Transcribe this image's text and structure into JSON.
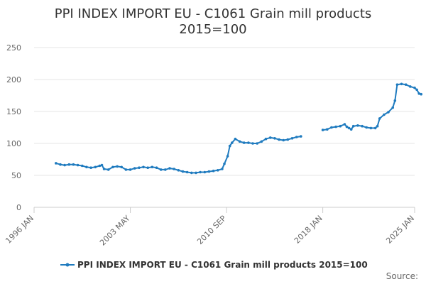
{
  "chart_data": {
    "type": "line",
    "title_line1": "PPI INDEX IMPORT EU - C1061 Grain mill products",
    "title_line2": "2015=100",
    "xlabel": "",
    "ylabel": "",
    "x_tick_labels": [
      "1996 JAN",
      "2003 MAY",
      "2010 SEP",
      "2018 JAN",
      "2025 JAN"
    ],
    "x_tick_dates": [
      "1996-01",
      "2003-05",
      "2010-09",
      "2018-01",
      "2025-01"
    ],
    "xlim": [
      "1996-01",
      "2025-01"
    ],
    "ylim": [
      0,
      250
    ],
    "y_ticks": [
      0,
      50,
      100,
      150,
      200,
      250
    ],
    "grid": "horizontal",
    "legend_position": "bottom",
    "color": "#1f7bbf",
    "series": [
      {
        "name": "PPI INDEX IMPORT EU - C1061 Grain mill products 2015=100",
        "segments": [
          [
            [
              "1997-09",
              69
            ],
            [
              "1998-01",
              67
            ],
            [
              "1998-05",
              66
            ],
            [
              "1998-09",
              67
            ],
            [
              "1999-01",
              67
            ],
            [
              "1999-05",
              66
            ],
            [
              "1999-09",
              65
            ],
            [
              "2000-01",
              63
            ],
            [
              "2000-05",
              62
            ],
            [
              "2000-09",
              63
            ],
            [
              "2001-01",
              65
            ],
            [
              "2001-03",
              66
            ],
            [
              "2001-05",
              60
            ],
            [
              "2001-09",
              59
            ],
            [
              "2002-01",
              63
            ],
            [
              "2002-05",
              64
            ],
            [
              "2002-09",
              63
            ],
            [
              "2003-01",
              59
            ],
            [
              "2003-05",
              59
            ],
            [
              "2003-09",
              61
            ],
            [
              "2004-01",
              62
            ],
            [
              "2004-05",
              63
            ],
            [
              "2004-09",
              62
            ],
            [
              "2005-01",
              63
            ],
            [
              "2005-05",
              62
            ],
            [
              "2005-09",
              59
            ],
            [
              "2006-01",
              59
            ],
            [
              "2006-05",
              61
            ],
            [
              "2006-09",
              60
            ],
            [
              "2007-01",
              58
            ],
            [
              "2007-05",
              56
            ],
            [
              "2007-09",
              55
            ],
            [
              "2008-01",
              54
            ],
            [
              "2008-05",
              54
            ],
            [
              "2008-09",
              55
            ],
            [
              "2009-01",
              55
            ],
            [
              "2009-05",
              56
            ],
            [
              "2009-09",
              57
            ],
            [
              "2010-01",
              58
            ],
            [
              "2010-05",
              60
            ],
            [
              "2010-07",
              68
            ],
            [
              "2010-10",
              80
            ],
            [
              "2010-12",
              96
            ],
            [
              "2011-02",
              101
            ],
            [
              "2011-05",
              107
            ],
            [
              "2011-09",
              103
            ],
            [
              "2012-01",
              101
            ],
            [
              "2012-05",
              101
            ],
            [
              "2012-09",
              100
            ],
            [
              "2013-01",
              100
            ],
            [
              "2013-05",
              103
            ],
            [
              "2013-09",
              107
            ],
            [
              "2014-01",
              109
            ],
            [
              "2014-05",
              108
            ],
            [
              "2014-09",
              106
            ],
            [
              "2015-01",
              105
            ],
            [
              "2015-05",
              106
            ],
            [
              "2015-09",
              108
            ],
            [
              "2016-01",
              110
            ],
            [
              "2016-05",
              111
            ]
          ],
          [
            [
              "2018-01",
              121
            ],
            [
              "2018-05",
              122
            ],
            [
              "2018-09",
              125
            ],
            [
              "2019-01",
              126
            ],
            [
              "2019-05",
              127
            ],
            [
              "2019-09",
              130
            ],
            [
              "2019-11",
              126
            ],
            [
              "2020-01",
              124
            ],
            [
              "2020-03",
              122
            ],
            [
              "2020-05",
              127
            ],
            [
              "2020-09",
              128
            ],
            [
              "2021-01",
              127
            ],
            [
              "2021-05",
              125
            ],
            [
              "2021-09",
              124
            ],
            [
              "2022-01",
              124
            ],
            [
              "2022-03",
              127
            ],
            [
              "2022-05",
              139
            ],
            [
              "2022-09",
              145
            ],
            [
              "2023-01",
              149
            ],
            [
              "2023-05",
              156
            ],
            [
              "2023-07",
              167
            ],
            [
              "2023-09",
              192
            ],
            [
              "2024-01",
              193
            ],
            [
              "2024-05",
              192
            ],
            [
              "2024-09",
              189
            ],
            [
              "2025-01",
              187
            ],
            [
              "2025-03",
              184
            ],
            [
              "2025-05",
              178
            ],
            [
              "2025-07",
              177
            ]
          ]
        ]
      }
    ]
  },
  "credit": "Source:"
}
